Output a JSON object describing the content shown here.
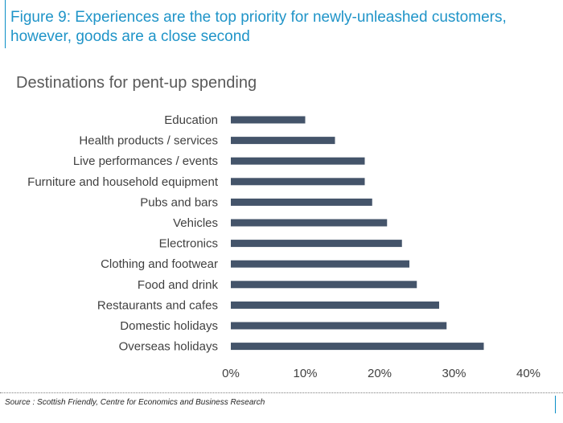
{
  "figure_title": "Figure 9: Experiences are the top priority for newly-unleashed customers, however, goods are a close second",
  "source": "Source : Scottish Friendly, Centre for Economics and Business Research",
  "colors": {
    "bar": "#44546a",
    "title": "#1f94c8",
    "accent": "#0a8fc7"
  },
  "chart_data": {
    "type": "bar",
    "orientation": "horizontal",
    "title": "Destinations for pent-up spending",
    "xlabel": "",
    "ylabel": "",
    "categories": [
      "Education",
      "Health products / services",
      "Live performances / events",
      "Furniture and household equipment",
      "Pubs and bars",
      "Vehicles",
      "Electronics",
      "Clothing and footwear",
      "Food and drink",
      "Restaurants and cafes",
      "Domestic holidays",
      "Overseas holidays"
    ],
    "values": [
      10,
      14,
      18,
      18,
      19,
      21,
      23,
      24,
      25,
      28,
      29,
      34
    ],
    "xlim": [
      0,
      40
    ],
    "xticks": [
      0,
      10,
      20,
      30,
      40
    ],
    "xtick_labels": [
      "0%",
      "10%",
      "20%",
      "30%",
      "40%"
    ],
    "unit": "%",
    "grid": false,
    "legend": "none"
  }
}
